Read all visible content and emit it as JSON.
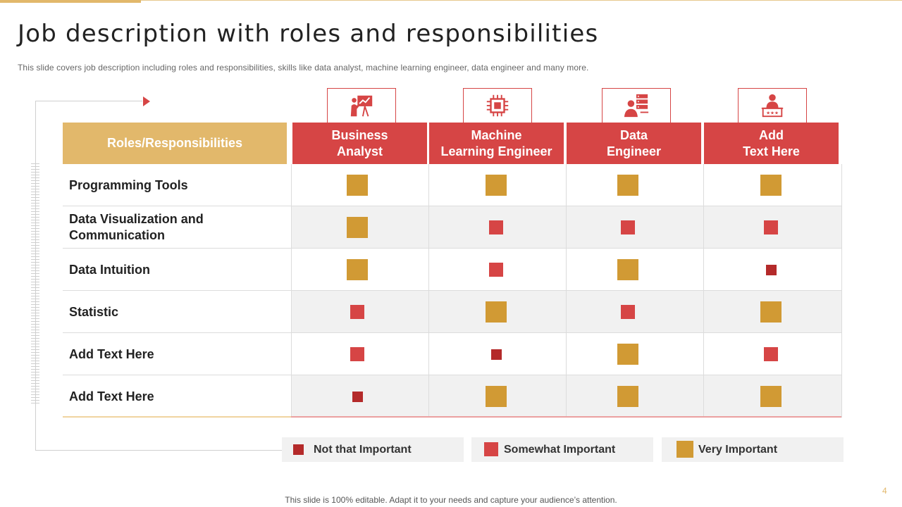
{
  "slide": {
    "title": "Job description with roles and responsibilities",
    "subtitle": "This slide covers job description including roles and responsibilities, skills like data analyst, machine learning engineer, data engineer and many more.",
    "footer": "This slide is 100% editable. Adapt it to your needs and capture your audience’s attention.",
    "page_number": "4"
  },
  "colors": {
    "gold_header": "#e2b86b",
    "red_header": "#d64545",
    "very_important": "#d19a34",
    "somewhat_important": "#d64545",
    "not_important": "#b42a2a"
  },
  "table": {
    "header_label": "Roles/Responsibilities",
    "columns": [
      {
        "line1": "Business",
        "line2": "Analyst",
        "icon": "presentation-icon"
      },
      {
        "line1": "Machine",
        "line2": "Learning Engineer",
        "icon": "chip-icon"
      },
      {
        "line1": "Data",
        "line2": "Engineer",
        "icon": "server-user-icon"
      },
      {
        "line1": "Add",
        "line2": "Text Here",
        "icon": "podium-speaker-icon"
      }
    ],
    "rows": [
      {
        "line1": "Programming Tools",
        "line2": "",
        "ratings": [
          "very",
          "very",
          "very",
          "very"
        ]
      },
      {
        "line1": "Data Visualization and",
        "line2": "Communication",
        "ratings": [
          "very",
          "somewhat",
          "somewhat",
          "somewhat"
        ]
      },
      {
        "line1": "Data Intuition",
        "line2": "",
        "ratings": [
          "very",
          "somewhat",
          "very",
          "not"
        ]
      },
      {
        "line1": "Statistic",
        "line2": "",
        "ratings": [
          "somewhat",
          "very",
          "somewhat",
          "very"
        ]
      },
      {
        "line1": "Add Text Here",
        "line2": "",
        "ratings": [
          "somewhat",
          "not",
          "very",
          "somewhat"
        ]
      },
      {
        "line1": "Add Text Here",
        "line2": "",
        "ratings": [
          "not",
          "very",
          "very",
          "very"
        ]
      }
    ]
  },
  "legend": [
    {
      "key": "not",
      "label": "Not that Important"
    },
    {
      "key": "somewhat",
      "label": "Somewhat Important"
    },
    {
      "key": "very",
      "label": "Very Important"
    }
  ]
}
